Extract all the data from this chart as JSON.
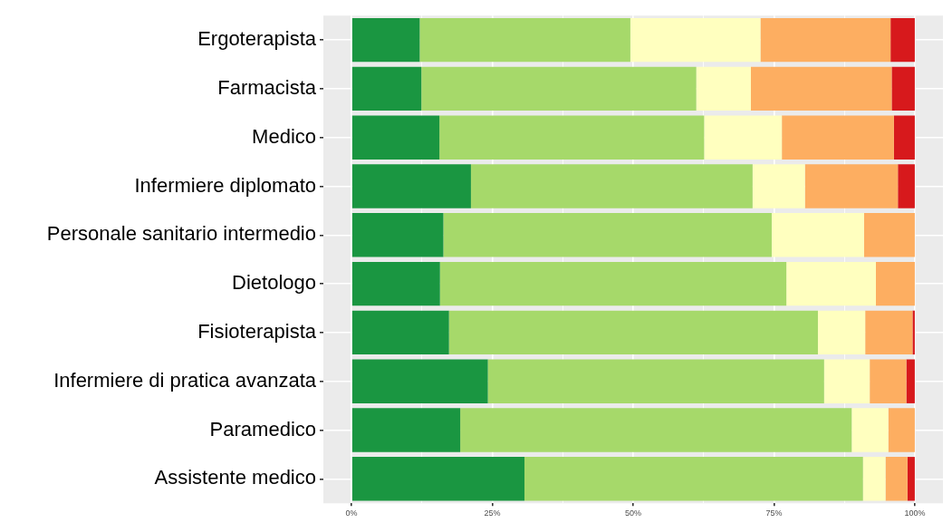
{
  "chart_data": {
    "type": "bar",
    "orientation": "horizontal",
    "stacked": true,
    "grid": true,
    "legend": false,
    "categories": [
      "Ergoterapista",
      "Farmacista",
      "Medico",
      "Infermiere diplomato",
      "Personale sanitario intermedio",
      "Dietologo",
      "Fisioterapista",
      "Infermiere di pratica avanzata",
      "Paramedico",
      "Assistente medico"
    ],
    "xlim": [
      -5,
      105
    ],
    "xticks": [
      {
        "value": 0,
        "label": "0%"
      },
      {
        "value": 12.5,
        "label": null
      },
      {
        "value": 25,
        "label": "25%"
      },
      {
        "value": 37.5,
        "label": null
      },
      {
        "value": 50,
        "label": "50%"
      },
      {
        "value": 62.5,
        "label": null
      },
      {
        "value": 75,
        "label": "75%"
      },
      {
        "value": 87.5,
        "label": null
      },
      {
        "value": 100,
        "label": "100%"
      }
    ],
    "series": [
      {
        "color": "#1a9641",
        "values": [
          12.1,
          12.4,
          15.6,
          21.2,
          16.3,
          15.7,
          17.3,
          24.2,
          19.3,
          30.7
        ]
      },
      {
        "color": "#a6d96a",
        "values": [
          37.4,
          48.8,
          47.0,
          50.0,
          58.3,
          61.5,
          65.5,
          59.7,
          69.5,
          60.1
        ]
      },
      {
        "color": "#ffffbf",
        "values": [
          23.1,
          9.7,
          13.8,
          9.3,
          16.4,
          15.9,
          8.4,
          8.1,
          6.5,
          4.0
        ]
      },
      {
        "color": "#fdae61",
        "values": [
          23.1,
          25.0,
          19.9,
          16.5,
          9.0,
          6.9,
          8.4,
          6.5,
          4.7,
          3.9
        ]
      },
      {
        "color": "#d7191c",
        "values": [
          4.3,
          4.1,
          3.7,
          3.0,
          0,
          0,
          0.4,
          1.5,
          0,
          1.3
        ]
      }
    ]
  }
}
